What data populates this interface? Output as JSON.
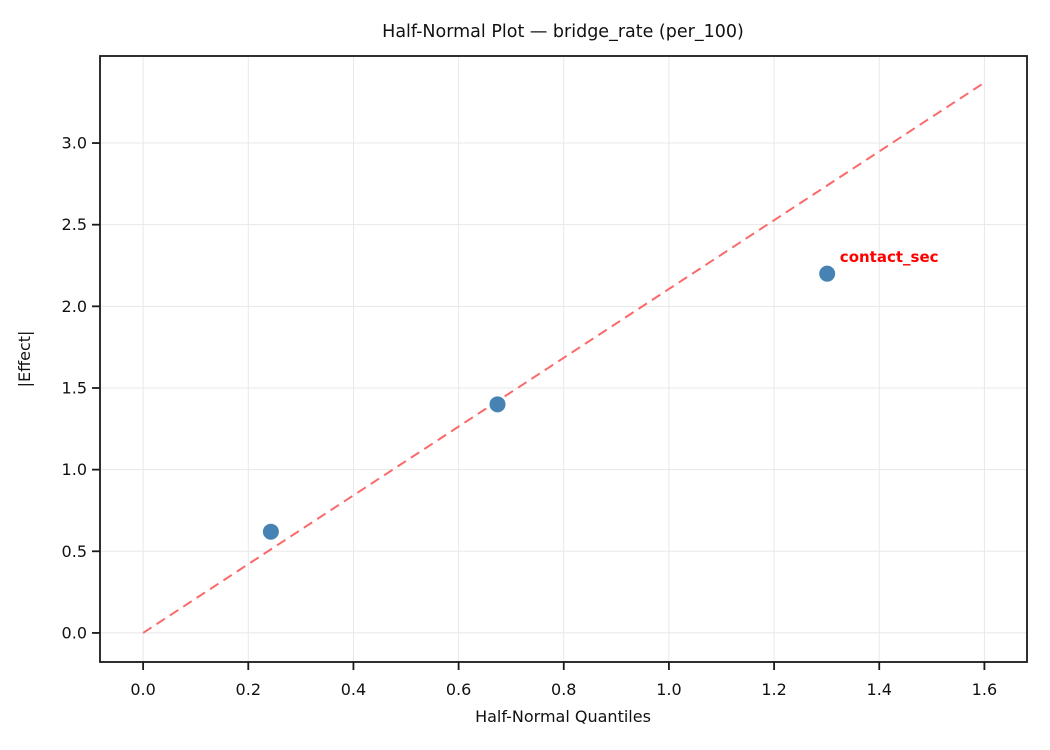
{
  "chart_data": {
    "type": "scatter",
    "title": "Half-Normal Plot — bridge_rate (per_100)",
    "xlabel": "Half-Normal Quantiles",
    "ylabel": "|Effect|",
    "xlim": [
      -0.082,
      1.681
    ],
    "ylim": [
      -0.178,
      3.533
    ],
    "xticks": [
      0.0,
      0.2,
      0.4,
      0.6,
      0.8,
      1.0,
      1.2,
      1.4,
      1.6
    ],
    "yticks": [
      0.0,
      0.5,
      1.0,
      1.5,
      2.0,
      2.5,
      3.0
    ],
    "grid": true,
    "legend": "none",
    "points": [
      {
        "x": 0.243,
        "y": 0.62
      },
      {
        "x": 0.674,
        "y": 1.4
      },
      {
        "x": 1.301,
        "y": 2.2
      }
    ],
    "reference_line": {
      "x1": 0.0,
      "y1": 0.0,
      "x2": 1.6,
      "y2": 3.37,
      "style": "dashed"
    },
    "annotation": {
      "text": "contact_sec",
      "x": 1.325,
      "y": 2.27
    },
    "marker_radius_px": 8,
    "colors": {
      "marker": "#4682b4",
      "line": "#fa6a6a",
      "annotation": "#ff0000",
      "grid": "#e8e8e8",
      "spine": "#1a1a1a",
      "text": "#111111"
    }
  }
}
